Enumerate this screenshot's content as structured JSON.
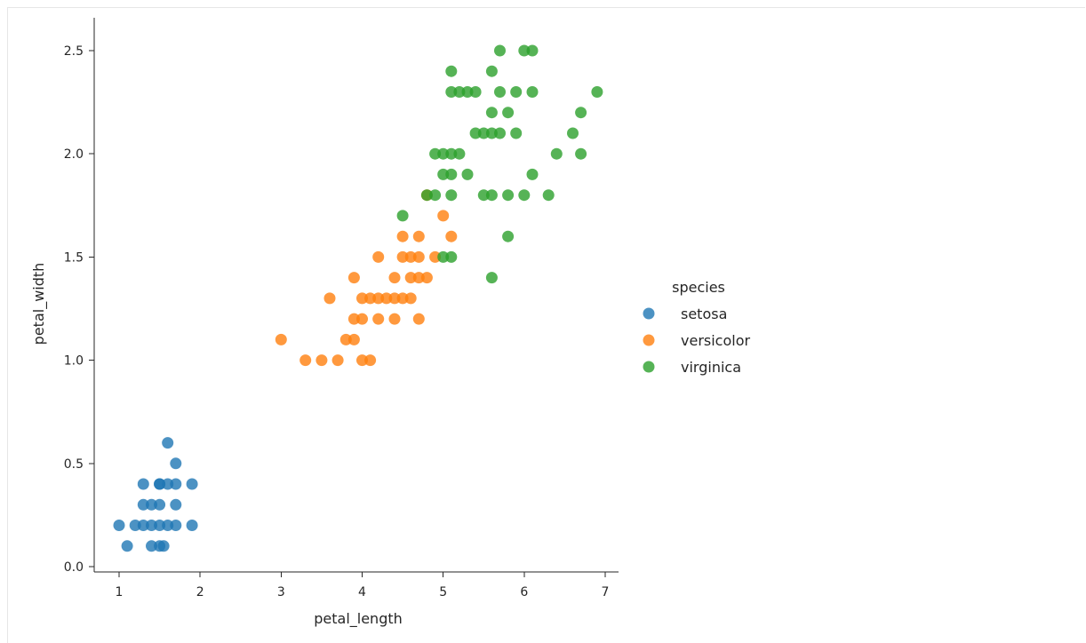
{
  "chart_data": {
    "type": "scatter",
    "title": "",
    "xlabel": "petal_length",
    "ylabel": "petal_width",
    "xlim": [
      0.75,
      7.15
    ],
    "ylim": [
      -0.05,
      2.6
    ],
    "xticks": [
      "1",
      "2",
      "3",
      "4",
      "5",
      "6",
      "7"
    ],
    "xtick_values": [
      1,
      2,
      3,
      4,
      5,
      6,
      7
    ],
    "yticks": [
      "0.0",
      "0.5",
      "1.0",
      "1.5",
      "2.0",
      "2.5"
    ],
    "ytick_values": [
      0.0,
      0.5,
      1.0,
      1.5,
      2.0,
      2.5
    ],
    "grid": false,
    "legend": {
      "title": "species",
      "placement": "right",
      "entries": [
        "setosa",
        "versicolor",
        "virginica"
      ]
    },
    "series": [
      {
        "name": "setosa",
        "color": "#1f77b4",
        "points": [
          [
            1.0,
            0.2
          ],
          [
            1.1,
            0.1
          ],
          [
            1.2,
            0.2
          ],
          [
            1.3,
            0.2
          ],
          [
            1.3,
            0.3
          ],
          [
            1.3,
            0.4
          ],
          [
            1.4,
            0.1
          ],
          [
            1.4,
            0.2
          ],
          [
            1.4,
            0.3
          ],
          [
            1.5,
            0.1
          ],
          [
            1.5,
            0.2
          ],
          [
            1.5,
            0.3
          ],
          [
            1.5,
            0.4
          ],
          [
            1.6,
            0.2
          ],
          [
            1.6,
            0.4
          ],
          [
            1.6,
            0.6
          ],
          [
            1.7,
            0.2
          ],
          [
            1.7,
            0.3
          ],
          [
            1.7,
            0.4
          ],
          [
            1.7,
            0.5
          ],
          [
            1.9,
            0.2
          ],
          [
            1.9,
            0.4
          ],
          [
            1.5,
            0.4
          ],
          [
            1.55,
            0.1
          ]
        ]
      },
      {
        "name": "versicolor",
        "color": "#ff7f0e",
        "points": [
          [
            3.0,
            1.1
          ],
          [
            3.3,
            1.0
          ],
          [
            3.5,
            1.0
          ],
          [
            3.6,
            1.3
          ],
          [
            3.7,
            1.0
          ],
          [
            3.8,
            1.1
          ],
          [
            3.9,
            1.1
          ],
          [
            3.9,
            1.2
          ],
          [
            3.9,
            1.4
          ],
          [
            4.0,
            1.0
          ],
          [
            4.0,
            1.2
          ],
          [
            4.0,
            1.3
          ],
          [
            4.1,
            1.0
          ],
          [
            4.1,
            1.3
          ],
          [
            4.2,
            1.2
          ],
          [
            4.2,
            1.3
          ],
          [
            4.2,
            1.5
          ],
          [
            4.3,
            1.3
          ],
          [
            4.4,
            1.2
          ],
          [
            4.4,
            1.3
          ],
          [
            4.4,
            1.4
          ],
          [
            4.5,
            1.3
          ],
          [
            4.5,
            1.5
          ],
          [
            4.5,
            1.6
          ],
          [
            4.6,
            1.3
          ],
          [
            4.6,
            1.4
          ],
          [
            4.6,
            1.5
          ],
          [
            4.7,
            1.2
          ],
          [
            4.7,
            1.4
          ],
          [
            4.7,
            1.5
          ],
          [
            4.7,
            1.6
          ],
          [
            4.8,
            1.4
          ],
          [
            4.8,
            1.8
          ],
          [
            4.9,
            1.5
          ],
          [
            5.0,
            1.7
          ],
          [
            5.1,
            1.6
          ]
        ]
      },
      {
        "name": "virginica",
        "color": "#2ca02c",
        "points": [
          [
            4.5,
            1.7
          ],
          [
            4.8,
            1.8
          ],
          [
            4.9,
            1.8
          ],
          [
            4.9,
            2.0
          ],
          [
            5.0,
            1.5
          ],
          [
            5.0,
            1.9
          ],
          [
            5.0,
            2.0
          ],
          [
            5.1,
            1.5
          ],
          [
            5.1,
            1.8
          ],
          [
            5.1,
            1.9
          ],
          [
            5.1,
            2.0
          ],
          [
            5.1,
            2.3
          ],
          [
            5.1,
            2.4
          ],
          [
            5.2,
            2.0
          ],
          [
            5.2,
            2.3
          ],
          [
            5.3,
            1.9
          ],
          [
            5.3,
            2.3
          ],
          [
            5.4,
            2.1
          ],
          [
            5.4,
            2.3
          ],
          [
            5.5,
            1.8
          ],
          [
            5.5,
            2.1
          ],
          [
            5.6,
            1.4
          ],
          [
            5.6,
            1.8
          ],
          [
            5.6,
            2.1
          ],
          [
            5.6,
            2.2
          ],
          [
            5.6,
            2.4
          ],
          [
            5.7,
            2.1
          ],
          [
            5.7,
            2.3
          ],
          [
            5.7,
            2.5
          ],
          [
            5.8,
            1.6
          ],
          [
            5.8,
            1.8
          ],
          [
            5.8,
            2.2
          ],
          [
            5.9,
            2.1
          ],
          [
            5.9,
            2.3
          ],
          [
            6.0,
            1.8
          ],
          [
            6.0,
            2.5
          ],
          [
            6.1,
            1.9
          ],
          [
            6.1,
            2.3
          ],
          [
            6.1,
            2.5
          ],
          [
            6.3,
            1.8
          ],
          [
            6.4,
            2.0
          ],
          [
            6.6,
            2.1
          ],
          [
            6.7,
            2.0
          ],
          [
            6.7,
            2.2
          ],
          [
            6.9,
            2.3
          ]
        ]
      }
    ]
  }
}
